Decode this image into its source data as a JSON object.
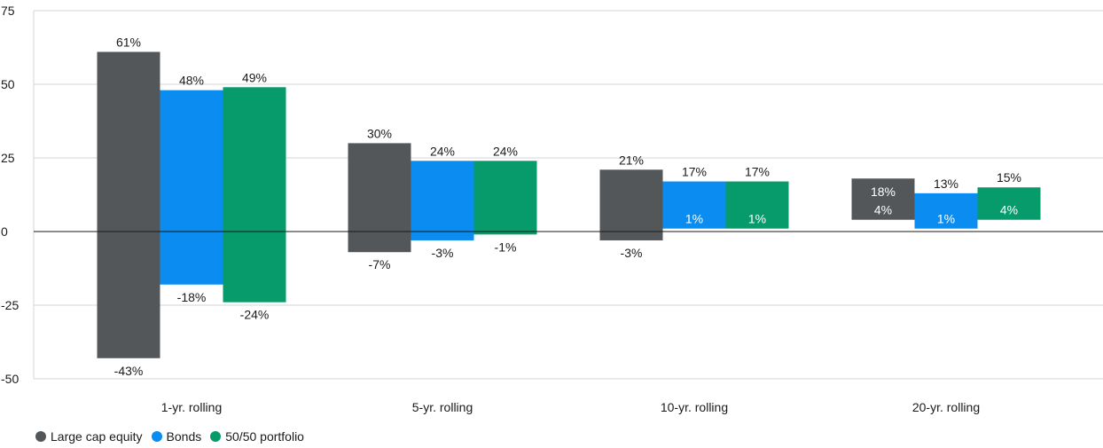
{
  "chart_data": {
    "type": "bar",
    "subtype": "floating-range",
    "categories": [
      "1-yr. rolling",
      "5-yr. rolling",
      "10-yr. rolling",
      "20-yr. rolling"
    ],
    "series": [
      {
        "name": "Large cap equity",
        "color": "#54575a",
        "max": [
          61,
          30,
          21,
          18
        ],
        "min": [
          -43,
          -7,
          -3,
          4
        ],
        "max_labels": [
          "61%",
          "30%",
          "21%",
          "18%"
        ],
        "min_labels": [
          "-43%",
          "-7%",
          "-3%",
          "4%"
        ]
      },
      {
        "name": "Bonds",
        "color": "#0a8cf0",
        "max": [
          48,
          24,
          17,
          13
        ],
        "min": [
          -18,
          -3,
          1,
          1
        ],
        "max_labels": [
          "48%",
          "24%",
          "17%",
          "13%"
        ],
        "min_labels": [
          "-18%",
          "-3%",
          "1%",
          "1%"
        ]
      },
      {
        "name": "50/50 portfolio",
        "color": "#079b6b",
        "max": [
          49,
          24,
          17,
          15
        ],
        "min": [
          -24,
          -1,
          1,
          4
        ],
        "max_labels": [
          "49%",
          "24%",
          "17%",
          "15%"
        ],
        "min_labels": [
          "-24%",
          "-1%",
          "1%",
          "4%"
        ]
      }
    ],
    "ylim": [
      -50,
      75
    ],
    "yticks": [
      -50,
      -25,
      0,
      25,
      50,
      75
    ],
    "ytick_labels": [
      "-50",
      "-25",
      "0",
      "25",
      "50",
      "75"
    ],
    "grid": true,
    "legend_position": "bottom-left"
  }
}
